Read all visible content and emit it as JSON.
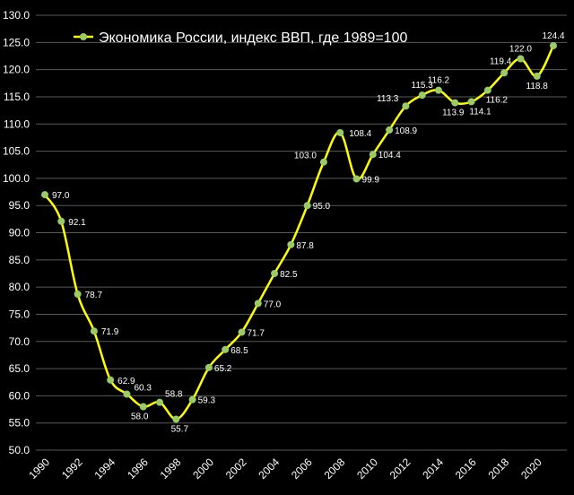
{
  "chart_data": {
    "type": "line",
    "title": "",
    "xlabel": "",
    "ylabel": "",
    "ylim": [
      50,
      130
    ],
    "y_tick_step": 5,
    "x_tick_labels": [
      "1990",
      "1992",
      "1994",
      "1996",
      "1998",
      "2000",
      "2002",
      "2004",
      "2006",
      "2008",
      "2010",
      "2012",
      "2014",
      "2016",
      "2018",
      "2020"
    ],
    "grid": "horizontal",
    "legend_placement": "top-left",
    "colors": {
      "line": "#ffff00",
      "marker": "#99cc66",
      "grid": "#595959",
      "background": "#000000"
    },
    "series": [
      {
        "name": "Экономика России, индекс ВВП, где 1989=100",
        "x": [
          1990,
          1991,
          1992,
          1993,
          1994,
          1995,
          1996,
          1997,
          1998,
          1999,
          2000,
          2001,
          2002,
          2003,
          2004,
          2005,
          2006,
          2007,
          2008,
          2009,
          2010,
          2011,
          2012,
          2013,
          2014,
          2015,
          2016,
          2017,
          2018,
          2019,
          2020,
          2021
        ],
        "values": [
          97.0,
          92.1,
          78.7,
          71.9,
          62.9,
          60.3,
          58.0,
          58.8,
          55.7,
          59.3,
          65.2,
          68.5,
          71.7,
          77.0,
          82.5,
          87.8,
          95.0,
          103.0,
          108.4,
          99.9,
          104.4,
          108.9,
          113.3,
          115.3,
          116.2,
          113.9,
          114.1,
          116.2,
          119.4,
          122.0,
          118.8,
          124.4
        ],
        "labels": [
          "97.0",
          "92.1",
          "78.7",
          "71.9",
          "62.9",
          "60.3",
          "58.0",
          "58.8",
          "55.7",
          "59.3",
          "65.2",
          "68.5",
          "71.7",
          "77.0",
          "82.5",
          "87.8",
          "95.0",
          "103.0",
          "108.4",
          "99.9",
          "104.4",
          "108.9",
          "113.3",
          "115.3",
          "116.2",
          "113.9",
          "114.1",
          "116.2",
          "119.4",
          "122.0",
          "118.8",
          "124.4"
        ]
      }
    ]
  }
}
